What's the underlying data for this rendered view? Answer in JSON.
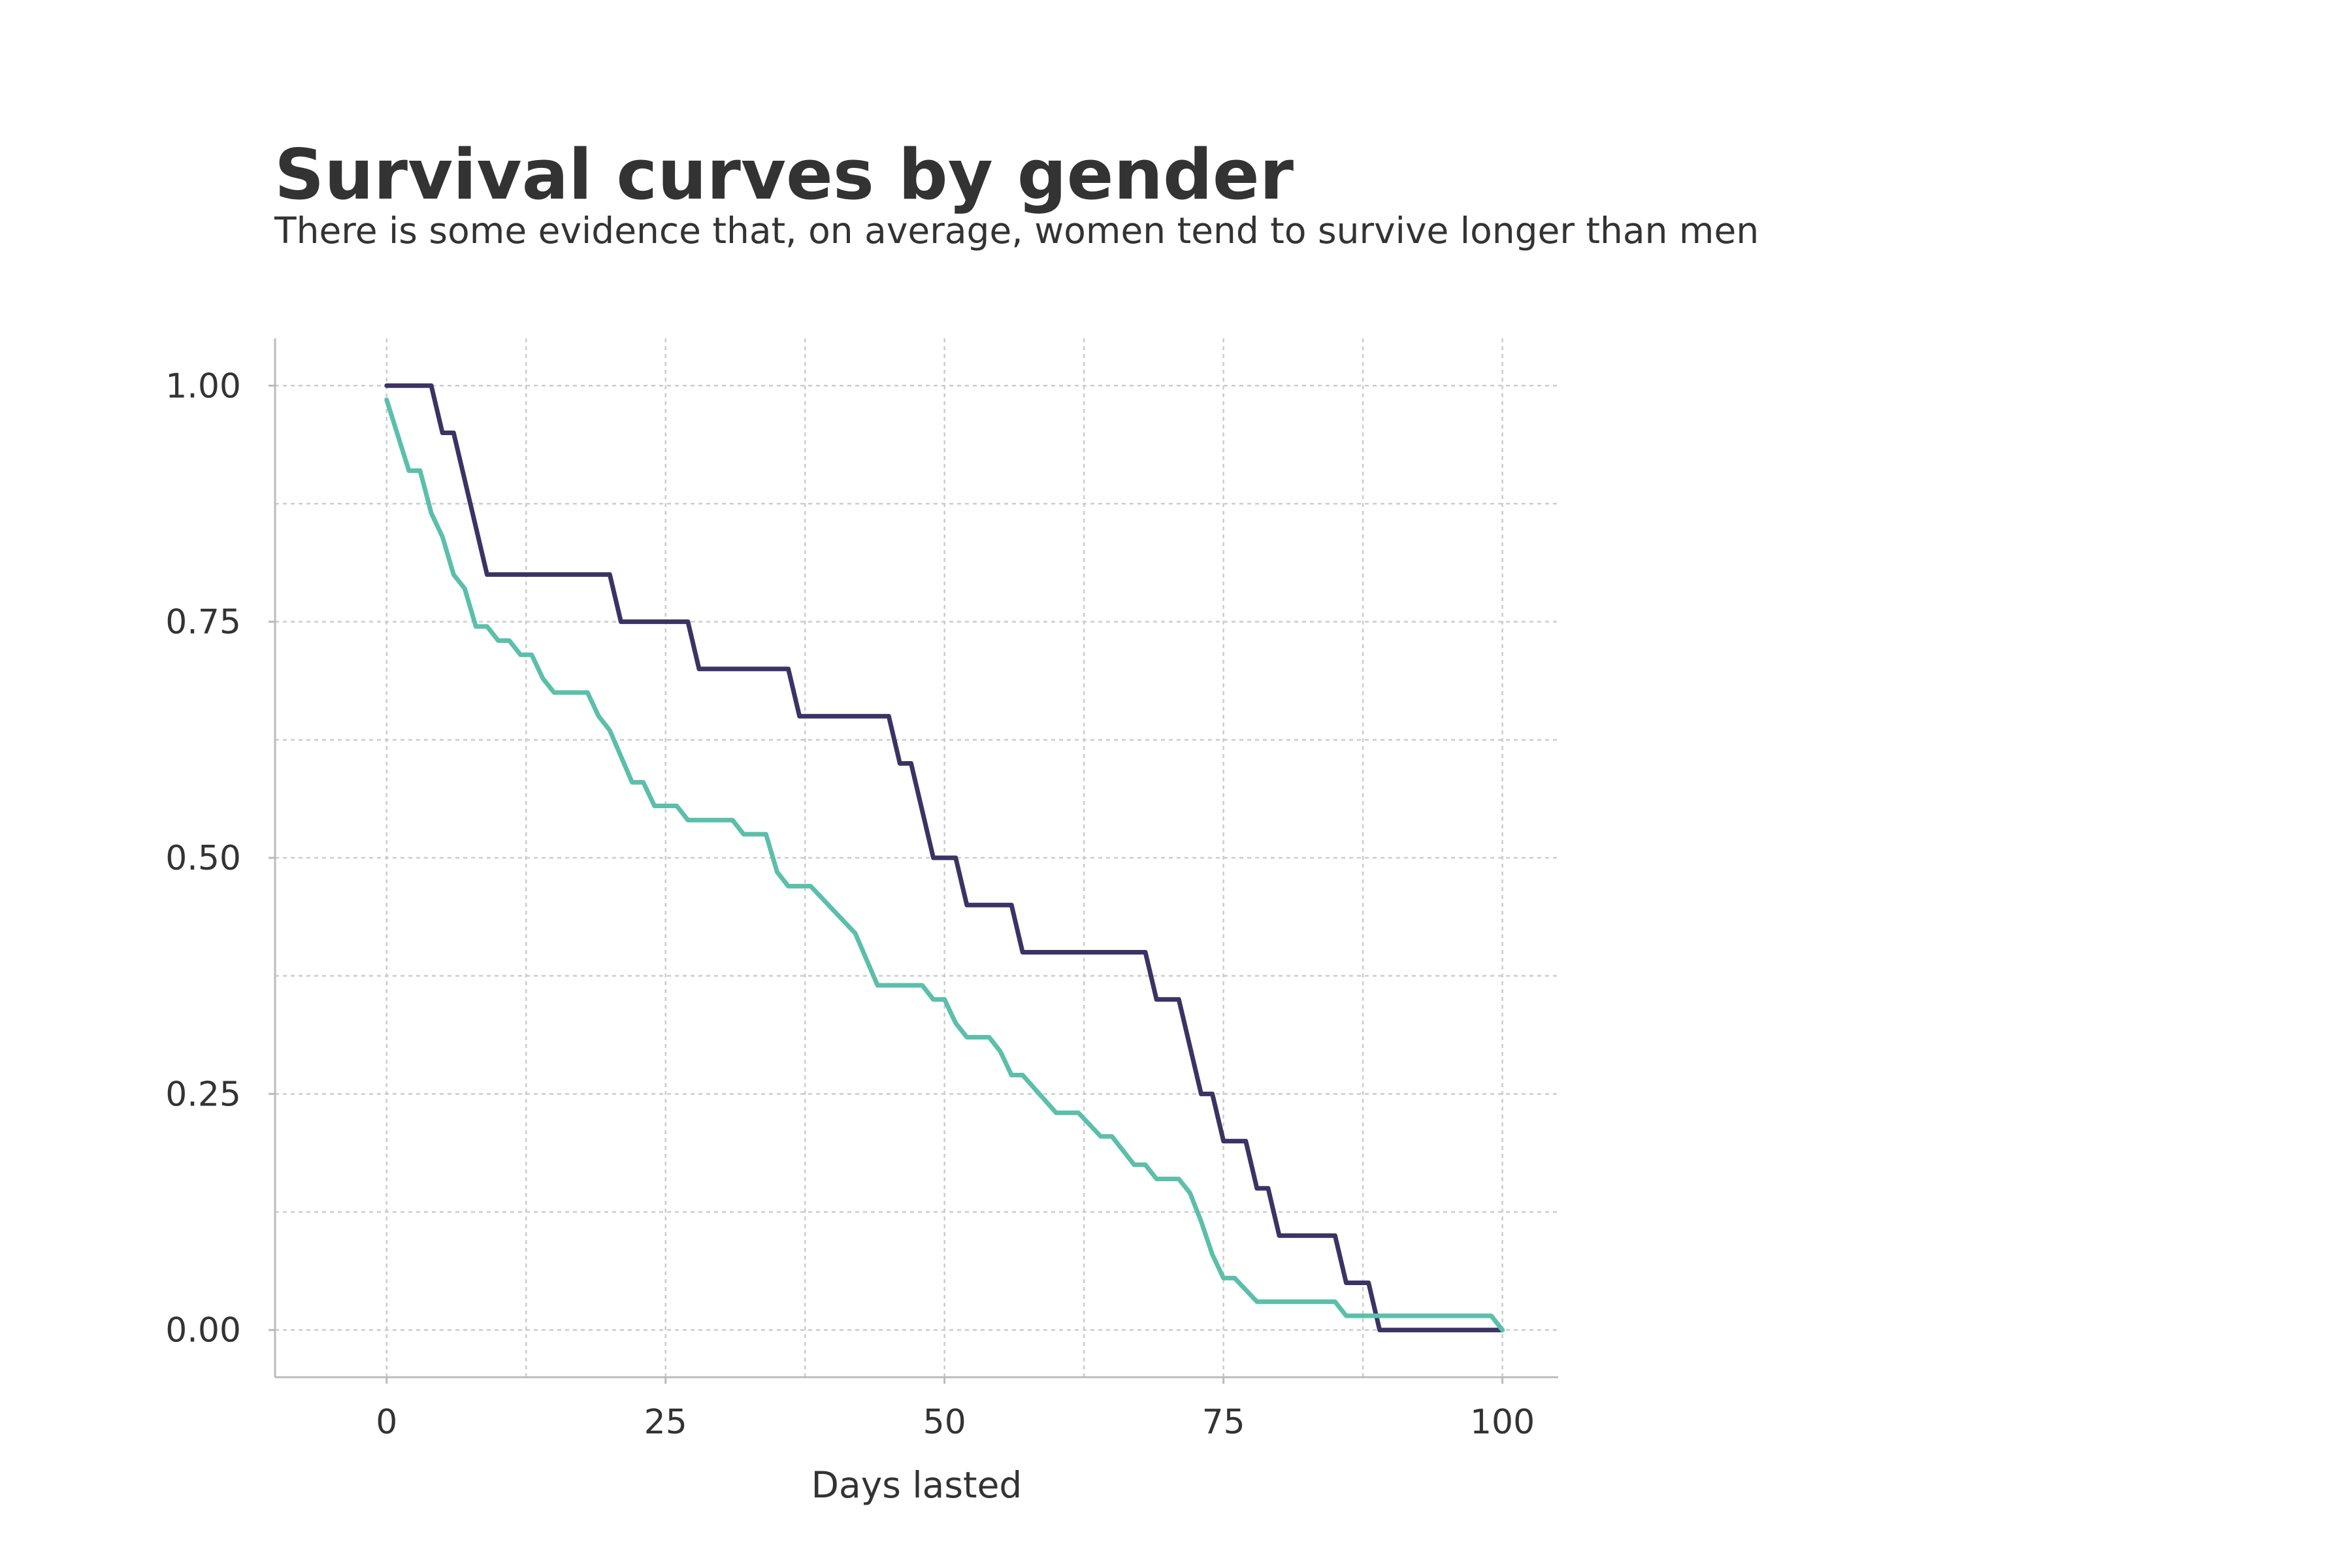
{
  "chart_data": {
    "type": "line",
    "title": "Survival curves by gender",
    "subtitle": "There is some evidence that, on average, women tend to survive longer than men",
    "xlabel": "Days lasted",
    "ylabel": "",
    "xlim": [
      -10,
      105
    ],
    "ylim": [
      -0.05,
      1.05
    ],
    "x_ticks": [
      0,
      25,
      50,
      75,
      100
    ],
    "x_tick_labels": [
      "0",
      "25",
      "50",
      "75",
      "100"
    ],
    "y_ticks": [
      0,
      0.25,
      0.5,
      0.75,
      1
    ],
    "y_tick_labels": [
      "0.00",
      "0.25",
      "0.50",
      "0.75",
      "1.00"
    ],
    "x_minor_grid": [
      12.5,
      37.5,
      62.5,
      87.5
    ],
    "y_minor_grid": [
      0.125,
      0.375,
      0.625,
      0.875
    ],
    "grid": true,
    "legend": "none",
    "series": [
      {
        "color": "#3a3363",
        "points": [
          [
            0,
            1.0
          ],
          [
            4,
            1.0
          ],
          [
            5,
            0.95
          ],
          [
            6,
            0.95
          ],
          [
            9,
            0.8
          ],
          [
            20,
            0.8
          ],
          [
            21,
            0.75
          ],
          [
            27,
            0.75
          ],
          [
            28,
            0.7
          ],
          [
            36,
            0.7
          ],
          [
            37,
            0.65
          ],
          [
            45,
            0.65
          ],
          [
            46,
            0.6
          ],
          [
            47,
            0.6
          ],
          [
            49,
            0.5
          ],
          [
            51,
            0.5
          ],
          [
            52,
            0.45
          ],
          [
            56,
            0.45
          ],
          [
            57,
            0.4
          ],
          [
            68,
            0.4
          ],
          [
            69,
            0.35
          ],
          [
            71,
            0.35
          ],
          [
            73,
            0.25
          ],
          [
            74,
            0.25
          ],
          [
            75,
            0.2
          ],
          [
            77,
            0.2
          ],
          [
            78,
            0.15
          ],
          [
            79,
            0.15
          ],
          [
            80,
            0.1
          ],
          [
            85,
            0.1
          ],
          [
            86,
            0.05
          ],
          [
            88,
            0.05
          ],
          [
            89,
            0.0
          ],
          [
            100,
            0.0
          ]
        ]
      },
      {
        "color": "#5bbfaa",
        "points": [
          [
            0,
            0.985
          ],
          [
            2,
            0.91
          ],
          [
            3,
            0.91
          ],
          [
            4,
            0.865
          ],
          [
            5,
            0.84
          ],
          [
            6,
            0.8
          ],
          [
            7,
            0.785
          ],
          [
            8,
            0.745
          ],
          [
            9,
            0.745
          ],
          [
            10,
            0.73
          ],
          [
            11,
            0.73
          ],
          [
            12,
            0.715
          ],
          [
            13,
            0.715
          ],
          [
            14,
            0.69
          ],
          [
            15,
            0.675
          ],
          [
            18,
            0.675
          ],
          [
            19,
            0.65
          ],
          [
            20,
            0.635
          ],
          [
            22,
            0.58
          ],
          [
            23,
            0.58
          ],
          [
            24,
            0.555
          ],
          [
            26,
            0.555
          ],
          [
            27,
            0.54
          ],
          [
            31,
            0.54
          ],
          [
            32,
            0.525
          ],
          [
            34,
            0.525
          ],
          [
            35,
            0.485
          ],
          [
            36,
            0.47
          ],
          [
            38,
            0.47
          ],
          [
            42,
            0.42
          ],
          [
            44,
            0.365
          ],
          [
            48,
            0.365
          ],
          [
            49,
            0.35
          ],
          [
            50,
            0.35
          ],
          [
            51,
            0.325
          ],
          [
            52,
            0.31
          ],
          [
            54,
            0.31
          ],
          [
            55,
            0.295
          ],
          [
            56,
            0.27
          ],
          [
            57,
            0.27
          ],
          [
            60,
            0.23
          ],
          [
            62,
            0.23
          ],
          [
            64,
            0.205
          ],
          [
            65,
            0.205
          ],
          [
            67,
            0.175
          ],
          [
            68,
            0.175
          ],
          [
            69,
            0.16
          ],
          [
            71,
            0.16
          ],
          [
            72,
            0.145
          ],
          [
            73,
            0.115
          ],
          [
            74,
            0.08
          ],
          [
            75,
            0.055
          ],
          [
            76,
            0.055
          ],
          [
            78,
            0.03
          ],
          [
            85,
            0.03
          ],
          [
            86,
            0.015
          ],
          [
            99,
            0.015
          ],
          [
            100,
            0.0
          ]
        ]
      }
    ]
  }
}
